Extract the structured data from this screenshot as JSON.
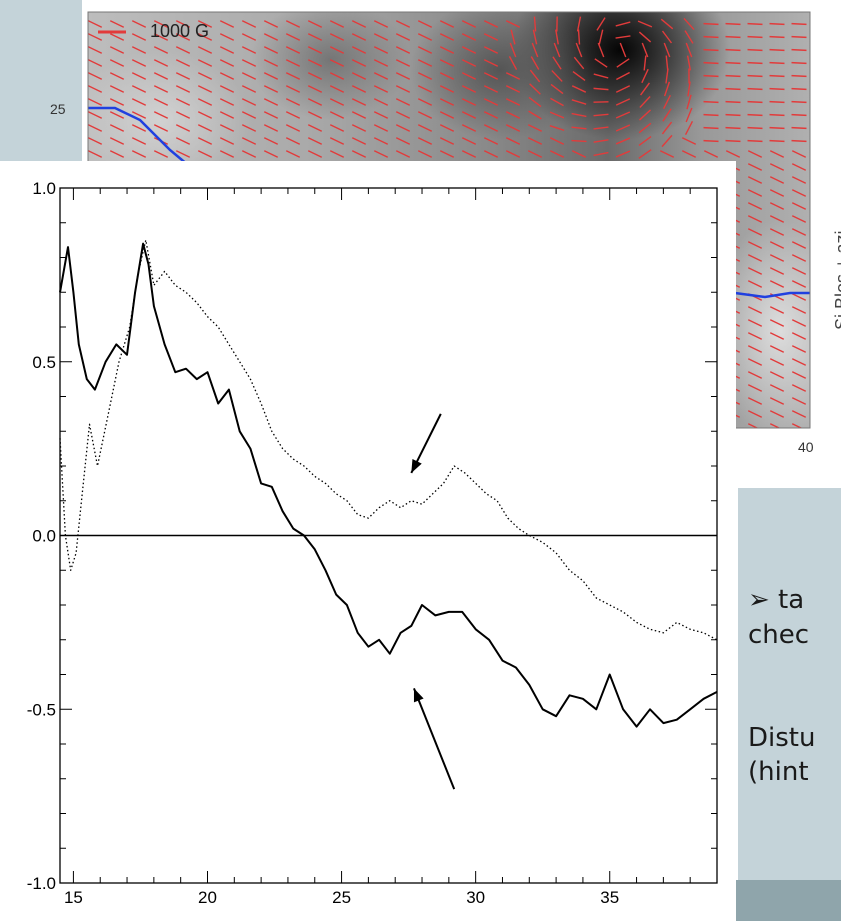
{
  "slide": {
    "bullet_line1": "➢ ta",
    "bullet_line2": "chec",
    "text_line3": "Distu",
    "text_line4": "(hint"
  },
  "map_figure": {
    "legend_label": "1000 G",
    "y_tick_label": "25",
    "x_tick_label": "40",
    "colorbar_label": "Si  Blos  +  azi",
    "colors": {
      "vectors": "#e23b3b",
      "contour": "#2040e0"
    }
  },
  "chart_data": {
    "type": "line",
    "title": "",
    "xlabel": "",
    "ylabel": "",
    "xlim": [
      14.5,
      39
    ],
    "ylim": [
      -1.0,
      1.0
    ],
    "x_ticks": [
      "15",
      "20",
      "25",
      "30",
      "35"
    ],
    "y_ticks": [
      "1.0",
      "0.5",
      "0.0",
      "-0.5",
      "-1.0"
    ],
    "grid": false,
    "reference_line_y": 0.0,
    "series": [
      {
        "style": "solid",
        "color": "#000000",
        "x": [
          14.5,
          14.8,
          15.0,
          15.2,
          15.5,
          15.8,
          16.2,
          16.6,
          17.0,
          17.3,
          17.6,
          17.8,
          18.0,
          18.4,
          18.8,
          19.2,
          19.6,
          20.0,
          20.4,
          20.8,
          21.2,
          21.6,
          22.0,
          22.4,
          22.8,
          23.2,
          23.6,
          24.0,
          24.4,
          24.8,
          25.2,
          25.6,
          26.0,
          26.4,
          26.8,
          27.2,
          27.6,
          28.0,
          28.5,
          29.0,
          29.5,
          30.0,
          30.5,
          31.0,
          31.5,
          32.0,
          32.5,
          33.0,
          33.5,
          34.0,
          34.5,
          35.0,
          35.5,
          36.0,
          36.5,
          37.0,
          37.5,
          38.0,
          38.5,
          39.0
        ],
        "values": [
          0.7,
          0.83,
          0.7,
          0.55,
          0.45,
          0.42,
          0.5,
          0.55,
          0.52,
          0.7,
          0.84,
          0.78,
          0.66,
          0.55,
          0.47,
          0.48,
          0.45,
          0.47,
          0.38,
          0.42,
          0.3,
          0.25,
          0.15,
          0.14,
          0.07,
          0.02,
          0.0,
          -0.04,
          -0.1,
          -0.17,
          -0.2,
          -0.28,
          -0.32,
          -0.3,
          -0.34,
          -0.28,
          -0.26,
          -0.2,
          -0.23,
          -0.22,
          -0.22,
          -0.27,
          -0.3,
          -0.36,
          -0.38,
          -0.43,
          -0.5,
          -0.52,
          -0.46,
          -0.47,
          -0.5,
          -0.4,
          -0.5,
          -0.55,
          -0.5,
          -0.54,
          -0.53,
          -0.5,
          -0.47,
          -0.45
        ]
      },
      {
        "style": "dotted",
        "color": "#000000",
        "x": [
          14.5,
          14.7,
          14.9,
          15.1,
          15.3,
          15.6,
          15.9,
          16.3,
          16.7,
          17.1,
          17.4,
          17.7,
          18.0,
          18.4,
          18.8,
          19.2,
          19.6,
          20.0,
          20.4,
          20.8,
          21.2,
          21.6,
          22.0,
          22.4,
          22.8,
          23.2,
          23.6,
          24.0,
          24.4,
          24.8,
          25.2,
          25.6,
          26.0,
          26.4,
          26.8,
          27.2,
          27.6,
          28.0,
          28.4,
          28.8,
          29.2,
          29.6,
          30.0,
          30.4,
          30.8,
          31.2,
          31.6,
          32.0,
          32.5,
          33.0,
          33.5,
          34.0,
          34.5,
          35.0,
          35.5,
          36.0,
          36.5,
          37.0,
          37.5,
          38.0,
          38.5,
          39.0
        ],
        "values": [
          0.28,
          0.0,
          -0.1,
          -0.05,
          0.1,
          0.32,
          0.2,
          0.35,
          0.5,
          0.6,
          0.75,
          0.85,
          0.72,
          0.76,
          0.72,
          0.7,
          0.67,
          0.63,
          0.6,
          0.55,
          0.5,
          0.45,
          0.38,
          0.3,
          0.25,
          0.22,
          0.2,
          0.17,
          0.15,
          0.12,
          0.1,
          0.06,
          0.05,
          0.08,
          0.1,
          0.08,
          0.1,
          0.09,
          0.12,
          0.15,
          0.2,
          0.18,
          0.15,
          0.12,
          0.1,
          0.05,
          0.02,
          0.0,
          -0.02,
          -0.05,
          -0.1,
          -0.13,
          -0.18,
          -0.2,
          -0.22,
          -0.25,
          -0.27,
          -0.28,
          -0.25,
          -0.27,
          -0.28,
          -0.3
        ]
      }
    ],
    "annotations": [
      {
        "type": "arrow",
        "from": [
          28.7,
          0.35
        ],
        "to": [
          27.6,
          0.18
        ],
        "target": "dotted"
      },
      {
        "type": "arrow",
        "from": [
          29.2,
          -0.73
        ],
        "to": [
          27.7,
          -0.44
        ],
        "target": "solid"
      }
    ]
  }
}
